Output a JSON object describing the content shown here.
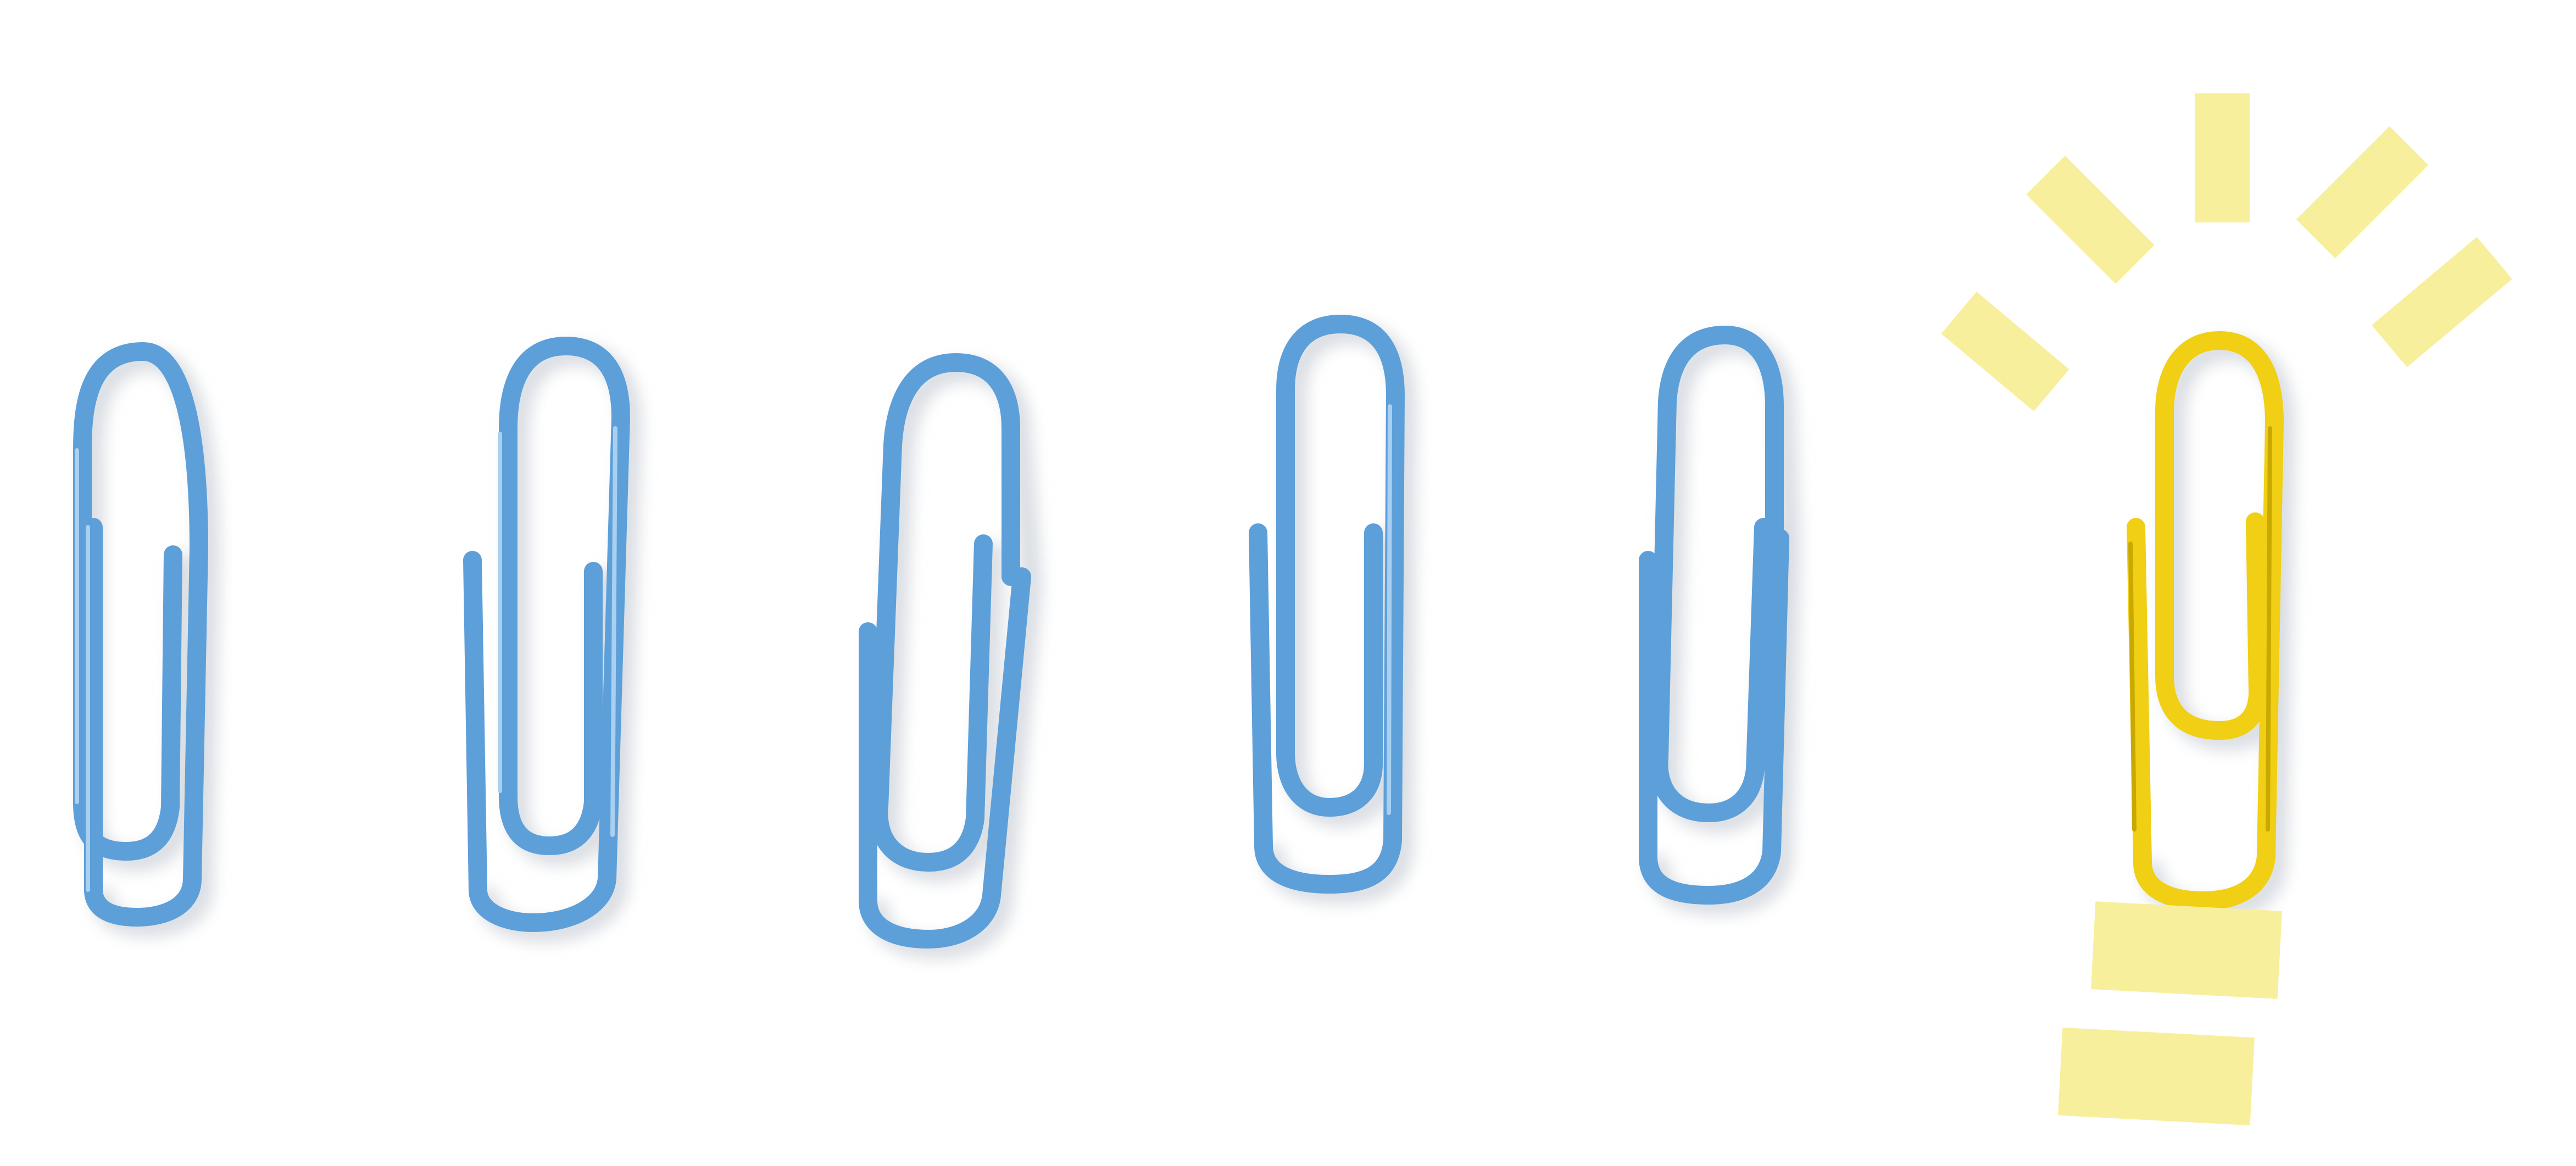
{
  "scene": {
    "description_label": "",
    "colors": {
      "background": "#ffffff",
      "clip_blue": "#6aa9df",
      "clip_blue_light": "#a9d0f1",
      "clip_blue_dark": "#3f86c7",
      "clip_yellow": "#f2d21c",
      "clip_yellow_dark": "#d8b400",
      "note_yellow": "#f6ee9a",
      "shadow": "#d9dde2"
    },
    "clips": [
      {
        "name": "clip-blue-1",
        "color": "blue"
      },
      {
        "name": "clip-blue-2",
        "color": "blue"
      },
      {
        "name": "clip-blue-3",
        "color": "blue"
      },
      {
        "name": "clip-blue-4",
        "color": "blue"
      },
      {
        "name": "clip-blue-5",
        "color": "blue"
      },
      {
        "name": "clip-yellow",
        "color": "yellow"
      }
    ],
    "idea_symbol": {
      "rays": 5,
      "base_bars": 2
    }
  }
}
